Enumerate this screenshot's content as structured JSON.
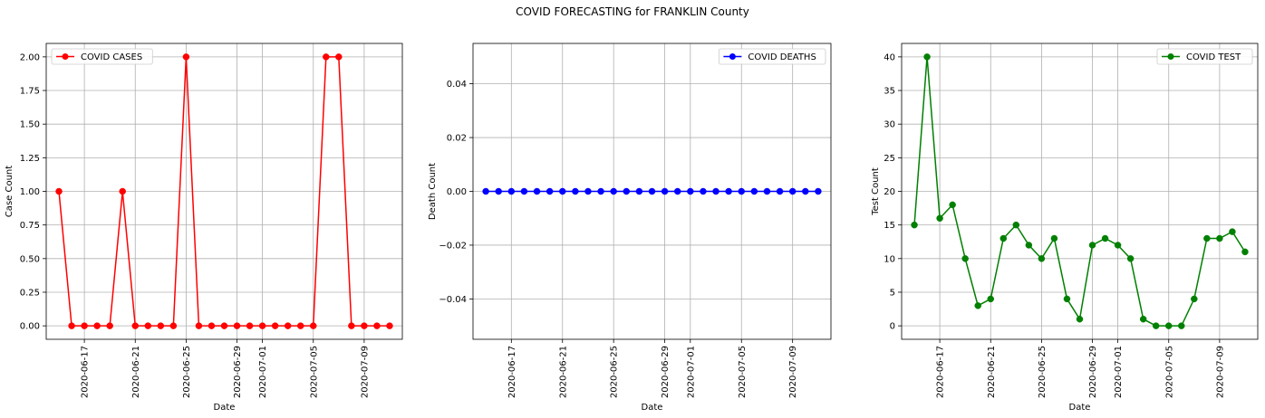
{
  "figure": {
    "title": "COVID FORECASTING for FRANKLIN County"
  },
  "chart_data": [
    {
      "type": "line",
      "xlabel": "Date",
      "ylabel": "Case Count",
      "color": "#ff0000",
      "grid": true,
      "legend_placement": "top-left",
      "x": [
        "2020-06-15",
        "2020-06-16",
        "2020-06-17",
        "2020-06-18",
        "2020-06-19",
        "2020-06-20",
        "2020-06-21",
        "2020-06-22",
        "2020-06-23",
        "2020-06-24",
        "2020-06-25",
        "2020-06-26",
        "2020-06-27",
        "2020-06-28",
        "2020-06-29",
        "2020-06-30",
        "2020-07-01",
        "2020-07-02",
        "2020-07-03",
        "2020-07-04",
        "2020-07-05",
        "2020-07-06",
        "2020-07-07",
        "2020-07-08",
        "2020-07-09",
        "2020-07-10",
        "2020-07-11"
      ],
      "series": [
        {
          "name": "COVID CASES",
          "values": [
            1,
            0,
            0,
            0,
            0,
            1,
            0,
            0,
            0,
            0,
            2,
            0,
            0,
            0,
            0,
            0,
            0,
            0,
            0,
            0,
            0,
            2,
            2,
            0,
            0,
            0,
            0
          ]
        }
      ],
      "xlim": [
        "2020-06-14",
        "2020-07-12"
      ],
      "ylim": [
        -0.1,
        2.1
      ],
      "yticks": [
        "0.00",
        "0.25",
        "0.50",
        "0.75",
        "1.00",
        "1.25",
        "1.50",
        "1.75",
        "2.00"
      ],
      "xticks": [
        "2020-06-17",
        "2020-06-21",
        "2020-06-25",
        "2020-06-29",
        "2020-07-01",
        "2020-07-05",
        "2020-07-09"
      ]
    },
    {
      "type": "line",
      "xlabel": "Date",
      "ylabel": "Death Count",
      "color": "#0000ff",
      "grid": true,
      "legend_placement": "top-right",
      "x": [
        "2020-06-15",
        "2020-06-16",
        "2020-06-17",
        "2020-06-18",
        "2020-06-19",
        "2020-06-20",
        "2020-06-21",
        "2020-06-22",
        "2020-06-23",
        "2020-06-24",
        "2020-06-25",
        "2020-06-26",
        "2020-06-27",
        "2020-06-28",
        "2020-06-29",
        "2020-06-30",
        "2020-07-01",
        "2020-07-02",
        "2020-07-03",
        "2020-07-04",
        "2020-07-05",
        "2020-07-06",
        "2020-07-07",
        "2020-07-08",
        "2020-07-09",
        "2020-07-10",
        "2020-07-11"
      ],
      "series": [
        {
          "name": "COVID DEATHS",
          "values": [
            0,
            0,
            0,
            0,
            0,
            0,
            0,
            0,
            0,
            0,
            0,
            0,
            0,
            0,
            0,
            0,
            0,
            0,
            0,
            0,
            0,
            0,
            0,
            0,
            0,
            0,
            0
          ]
        }
      ],
      "xlim": [
        "2020-06-14",
        "2020-07-12"
      ],
      "ylim": [
        -0.055,
        0.055
      ],
      "yticks": [
        "−0.04",
        "−0.02",
        "0.00",
        "0.02",
        "0.04"
      ],
      "xticks": [
        "2020-06-17",
        "2020-06-21",
        "2020-06-25",
        "2020-06-29",
        "2020-07-01",
        "2020-07-05",
        "2020-07-09"
      ]
    },
    {
      "type": "line",
      "xlabel": "Date",
      "ylabel": "Test Count",
      "color": "#008000",
      "grid": true,
      "legend_placement": "top-right",
      "x": [
        "2020-06-15",
        "2020-06-16",
        "2020-06-17",
        "2020-06-18",
        "2020-06-19",
        "2020-06-20",
        "2020-06-21",
        "2020-06-22",
        "2020-06-23",
        "2020-06-24",
        "2020-06-25",
        "2020-06-26",
        "2020-06-27",
        "2020-06-28",
        "2020-06-29",
        "2020-06-30",
        "2020-07-01",
        "2020-07-02",
        "2020-07-03",
        "2020-07-04",
        "2020-07-05",
        "2020-07-06",
        "2020-07-07",
        "2020-07-08",
        "2020-07-09",
        "2020-07-10",
        "2020-07-11"
      ],
      "series": [
        {
          "name": "COVID TEST",
          "values": [
            15,
            40,
            16,
            18,
            10,
            3,
            4,
            13,
            15,
            12,
            10,
            13,
            4,
            1,
            12,
            13,
            12,
            10,
            1,
            0,
            0,
            0,
            4,
            13,
            13,
            14,
            11
          ]
        }
      ],
      "xlim": [
        "2020-06-14",
        "2020-07-12"
      ],
      "ylim": [
        -2,
        42
      ],
      "yticks": [
        "0",
        "5",
        "10",
        "15",
        "20",
        "25",
        "30",
        "35",
        "40"
      ],
      "xticks": [
        "2020-06-17",
        "2020-06-21",
        "2020-06-25",
        "2020-06-29",
        "2020-07-01",
        "2020-07-05",
        "2020-07-09"
      ]
    }
  ]
}
